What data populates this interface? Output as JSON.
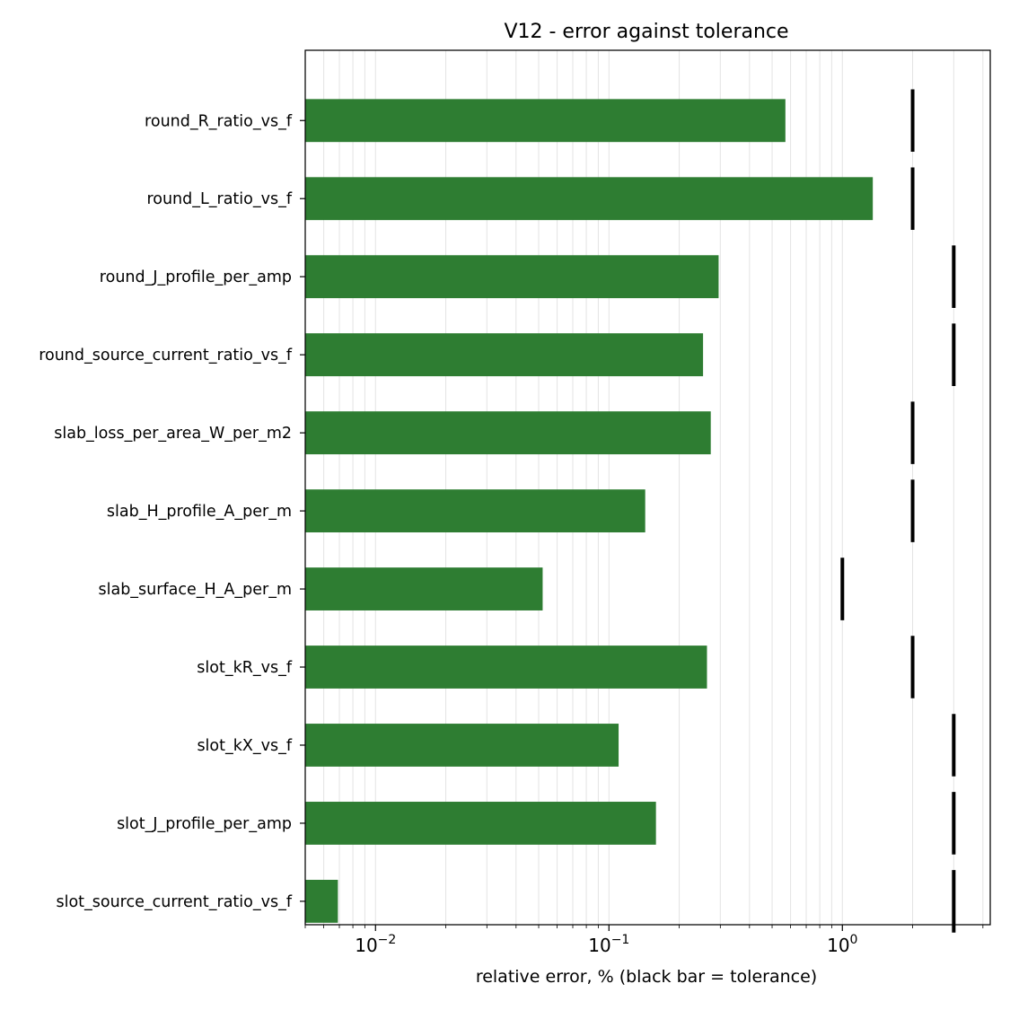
{
  "chart_data": {
    "type": "bar",
    "orientation": "horizontal",
    "title": "V12 - error against tolerance",
    "xlabel": "relative error, % (black bar = tolerance)",
    "ylabel": "",
    "xscale": "log",
    "xlim": [
      0.005,
      4.3
    ],
    "grid": "x-major-and-minor",
    "categories": [
      "round_R_ratio_vs_f",
      "round_L_ratio_vs_f",
      "round_J_profile_per_amp",
      "round_source_current_ratio_vs_f",
      "slab_loss_per_area_W_per_m2",
      "slab_H_profile_A_per_m",
      "slab_surface_H_A_per_m",
      "slot_kR_vs_f",
      "slot_kX_vs_f",
      "slot_J_profile_per_amp",
      "slot_source_current_ratio_vs_f"
    ],
    "values": [
      0.57,
      1.35,
      0.295,
      0.253,
      0.273,
      0.143,
      0.052,
      0.263,
      0.11,
      0.159,
      0.0069
    ],
    "tolerance": [
      2,
      2,
      3,
      3,
      2,
      2,
      1,
      2,
      3,
      3,
      3
    ],
    "x_tick_labels": [
      {
        "base": "10",
        "exp": "−2"
      },
      {
        "base": "10",
        "exp": "−1"
      },
      {
        "base": "10",
        "exp": "0"
      }
    ],
    "colors": {
      "bar": "#2e7d32",
      "tolerance": "#000000",
      "grid": "#e3e3e3"
    }
  }
}
